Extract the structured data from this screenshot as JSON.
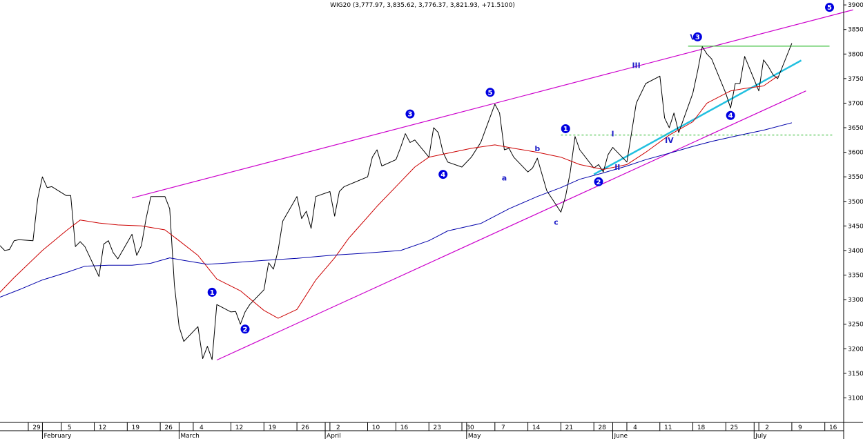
{
  "chart_data": {
    "type": "line",
    "title": "WIG20 (3,777.97, 3,835.62, 3,776.37, 3,821.93, +71.5100)",
    "ylim": [
      3050,
      3910
    ],
    "y_ticks": [
      3100,
      3150,
      3200,
      3250,
      3300,
      3350,
      3400,
      3450,
      3500,
      3550,
      3600,
      3650,
      3700,
      3750,
      3800,
      3850,
      3900
    ],
    "x_range": [
      "2012-01-23",
      "2012-07-20"
    ],
    "day_ticks": [
      {
        "date": "2012-01-29",
        "label": "29"
      },
      {
        "date": "2012-02-05",
        "label": "5"
      },
      {
        "date": "2012-02-12",
        "label": "12"
      },
      {
        "date": "2012-02-19",
        "label": "19"
      },
      {
        "date": "2012-02-26",
        "label": "26"
      },
      {
        "date": "2012-03-04",
        "label": "4"
      },
      {
        "date": "2012-03-12",
        "label": "12"
      },
      {
        "date": "2012-03-19",
        "label": "19"
      },
      {
        "date": "2012-03-26",
        "label": "26"
      },
      {
        "date": "2012-04-02",
        "label": "2"
      },
      {
        "date": "2012-04-10",
        "label": "10"
      },
      {
        "date": "2012-04-16",
        "label": "16"
      },
      {
        "date": "2012-04-23",
        "label": "23"
      },
      {
        "date": "2012-04-30",
        "label": "30"
      },
      {
        "date": "2012-05-07",
        "label": "7"
      },
      {
        "date": "2012-05-14",
        "label": "14"
      },
      {
        "date": "2012-05-21",
        "label": "21"
      },
      {
        "date": "2012-05-28",
        "label": "28"
      },
      {
        "date": "2012-06-04",
        "label": "4"
      },
      {
        "date": "2012-06-11",
        "label": "11"
      },
      {
        "date": "2012-06-18",
        "label": "18"
      },
      {
        "date": "2012-06-25",
        "label": "25"
      },
      {
        "date": "2012-07-02",
        "label": "2"
      },
      {
        "date": "2012-07-09",
        "label": "9"
      },
      {
        "date": "2012-07-16",
        "label": "16"
      }
    ],
    "month_ticks": [
      {
        "date": "2012-02-01",
        "label": "February"
      },
      {
        "date": "2012-03-01",
        "label": "March"
      },
      {
        "date": "2012-04-01",
        "label": "April"
      },
      {
        "date": "2012-05-01",
        "label": "May"
      },
      {
        "date": "2012-06-01",
        "label": "June"
      },
      {
        "date": "2012-07-01",
        "label": "July"
      }
    ],
    "series": [
      {
        "color": "#000000",
        "points": [
          [
            "2012-01-23",
            3410
          ],
          [
            "2012-01-24",
            3400
          ],
          [
            "2012-01-25",
            3402
          ],
          [
            "2012-01-26",
            3420
          ],
          [
            "2012-01-27",
            3422
          ],
          [
            "2012-01-30",
            3420
          ],
          [
            "2012-01-31",
            3505
          ],
          [
            "2012-02-01",
            3550
          ],
          [
            "2012-02-02",
            3528
          ],
          [
            "2012-02-03",
            3530
          ],
          [
            "2012-02-06",
            3512
          ],
          [
            "2012-02-07",
            3512
          ],
          [
            "2012-02-08",
            3408
          ],
          [
            "2012-02-09",
            3418
          ],
          [
            "2012-02-10",
            3408
          ],
          [
            "2012-02-13",
            3347
          ],
          [
            "2012-02-14",
            3413
          ],
          [
            "2012-02-15",
            3420
          ],
          [
            "2012-02-16",
            3396
          ],
          [
            "2012-02-17",
            3383
          ],
          [
            "2012-02-20",
            3433
          ],
          [
            "2012-02-21",
            3390
          ],
          [
            "2012-02-22",
            3410
          ],
          [
            "2012-02-23",
            3465
          ],
          [
            "2012-02-24",
            3510
          ],
          [
            "2012-02-27",
            3510
          ],
          [
            "2012-02-28",
            3485
          ],
          [
            "2012-02-29",
            3330
          ],
          [
            "2012-03-01",
            3245
          ],
          [
            "2012-03-02",
            3215
          ],
          [
            "2012-03-05",
            3245
          ],
          [
            "2012-03-06",
            3180
          ],
          [
            "2012-03-07",
            3205
          ],
          [
            "2012-03-08",
            3178
          ],
          [
            "2012-03-09",
            3290
          ],
          [
            "2012-03-12",
            3275
          ],
          [
            "2012-03-13",
            3276
          ],
          [
            "2012-03-14",
            3250
          ],
          [
            "2012-03-15",
            3275
          ],
          [
            "2012-03-16",
            3290
          ],
          [
            "2012-03-19",
            3320
          ],
          [
            "2012-03-20",
            3375
          ],
          [
            "2012-03-21",
            3362
          ],
          [
            "2012-03-22",
            3400
          ],
          [
            "2012-03-23",
            3460
          ],
          [
            "2012-03-26",
            3510
          ],
          [
            "2012-03-27",
            3465
          ],
          [
            "2012-03-28",
            3480
          ],
          [
            "2012-03-29",
            3445
          ],
          [
            "2012-03-30",
            3510
          ],
          [
            "2012-04-02",
            3520
          ],
          [
            "2012-04-03",
            3470
          ],
          [
            "2012-04-04",
            3520
          ],
          [
            "2012-04-05",
            3530
          ],
          [
            "2012-04-10",
            3550
          ],
          [
            "2012-04-11",
            3590
          ],
          [
            "2012-04-12",
            3605
          ],
          [
            "2012-04-13",
            3572
          ],
          [
            "2012-04-16",
            3585
          ],
          [
            "2012-04-17",
            3610
          ],
          [
            "2012-04-18",
            3638
          ],
          [
            "2012-04-19",
            3620
          ],
          [
            "2012-04-20",
            3625
          ],
          [
            "2012-04-23",
            3590
          ],
          [
            "2012-04-24",
            3650
          ],
          [
            "2012-04-25",
            3640
          ],
          [
            "2012-04-26",
            3600
          ],
          [
            "2012-04-27",
            3580
          ],
          [
            "2012-04-30",
            3570
          ],
          [
            "2012-05-02",
            3590
          ],
          [
            "2012-05-04",
            3620
          ],
          [
            "2012-05-07",
            3698
          ],
          [
            "2012-05-08",
            3680
          ],
          [
            "2012-05-09",
            3605
          ],
          [
            "2012-05-10",
            3608
          ],
          [
            "2012-05-11",
            3590
          ],
          [
            "2012-05-14",
            3560
          ],
          [
            "2012-05-15",
            3568
          ],
          [
            "2012-05-16",
            3588
          ],
          [
            "2012-05-17",
            3555
          ],
          [
            "2012-05-18",
            3522
          ],
          [
            "2012-05-21",
            3478
          ],
          [
            "2012-05-22",
            3510
          ],
          [
            "2012-05-23",
            3560
          ],
          [
            "2012-05-24",
            3632
          ],
          [
            "2012-05-25",
            3605
          ],
          [
            "2012-05-28",
            3568
          ],
          [
            "2012-05-29",
            3575
          ],
          [
            "2012-05-30",
            3560
          ],
          [
            "2012-05-31",
            3595
          ],
          [
            "2012-06-01",
            3610
          ],
          [
            "2012-06-04",
            3580
          ],
          [
            "2012-06-05",
            3640
          ],
          [
            "2012-06-06",
            3700
          ],
          [
            "2012-06-08",
            3740
          ],
          [
            "2012-06-11",
            3755
          ],
          [
            "2012-06-12",
            3670
          ],
          [
            "2012-06-13",
            3650
          ],
          [
            "2012-06-14",
            3680
          ],
          [
            "2012-06-15",
            3640
          ],
          [
            "2012-06-18",
            3720
          ],
          [
            "2012-06-19",
            3765
          ],
          [
            "2012-06-20",
            3815
          ],
          [
            "2012-06-21",
            3800
          ],
          [
            "2012-06-22",
            3790
          ],
          [
            "2012-06-25",
            3720
          ],
          [
            "2012-06-26",
            3690
          ],
          [
            "2012-06-27",
            3740
          ],
          [
            "2012-06-28",
            3740
          ],
          [
            "2012-06-29",
            3795
          ],
          [
            "2012-07-02",
            3725
          ],
          [
            "2012-07-03",
            3788
          ],
          [
            "2012-07-04",
            3775
          ],
          [
            "2012-07-05",
            3758
          ],
          [
            "2012-07-06",
            3750
          ],
          [
            "2012-07-09",
            3821.93
          ]
        ]
      },
      {
        "color": "#cc0000",
        "points": [
          [
            "2012-01-23",
            3315
          ],
          [
            "2012-01-26",
            3345
          ],
          [
            "2012-02-01",
            3400
          ],
          [
            "2012-02-06",
            3440
          ],
          [
            "2012-02-09",
            3462
          ],
          [
            "2012-02-13",
            3456
          ],
          [
            "2012-02-17",
            3452
          ],
          [
            "2012-02-22",
            3450
          ],
          [
            "2012-02-27",
            3442
          ],
          [
            "2012-03-01",
            3420
          ],
          [
            "2012-03-05",
            3390
          ],
          [
            "2012-03-09",
            3342
          ],
          [
            "2012-03-14",
            3318
          ],
          [
            "2012-03-19",
            3278
          ],
          [
            "2012-03-22",
            3262
          ],
          [
            "2012-03-26",
            3280
          ],
          [
            "2012-03-30",
            3340
          ],
          [
            "2012-04-03",
            3385
          ],
          [
            "2012-04-06",
            3425
          ],
          [
            "2012-04-12",
            3490
          ],
          [
            "2012-04-17",
            3540
          ],
          [
            "2012-04-20",
            3570
          ],
          [
            "2012-04-23",
            3590
          ],
          [
            "2012-04-27",
            3598
          ],
          [
            "2012-05-02",
            3608
          ],
          [
            "2012-05-07",
            3615
          ],
          [
            "2012-05-11",
            3608
          ],
          [
            "2012-05-16",
            3600
          ],
          [
            "2012-05-21",
            3590
          ],
          [
            "2012-05-25",
            3575
          ],
          [
            "2012-05-30",
            3565
          ],
          [
            "2012-06-04",
            3575
          ],
          [
            "2012-06-08",
            3600
          ],
          [
            "2012-06-13",
            3635
          ],
          [
            "2012-06-18",
            3662
          ],
          [
            "2012-06-21",
            3700
          ],
          [
            "2012-06-26",
            3725
          ],
          [
            "2012-06-29",
            3730
          ],
          [
            "2012-07-03",
            3735
          ],
          [
            "2012-07-06",
            3755
          ]
        ]
      },
      {
        "color": "#0000aa",
        "points": [
          [
            "2012-01-23",
            3305
          ],
          [
            "2012-01-27",
            3320
          ],
          [
            "2012-02-01",
            3340
          ],
          [
            "2012-02-06",
            3355
          ],
          [
            "2012-02-10",
            3368
          ],
          [
            "2012-02-15",
            3370
          ],
          [
            "2012-02-20",
            3370
          ],
          [
            "2012-02-24",
            3374
          ],
          [
            "2012-02-28",
            3385
          ],
          [
            "2012-03-02",
            3380
          ],
          [
            "2012-03-07",
            3372
          ],
          [
            "2012-03-12",
            3375
          ],
          [
            "2012-03-19",
            3380
          ],
          [
            "2012-03-26",
            3384
          ],
          [
            "2012-04-02",
            3390
          ],
          [
            "2012-04-10",
            3395
          ],
          [
            "2012-04-17",
            3400
          ],
          [
            "2012-04-23",
            3420
          ],
          [
            "2012-04-27",
            3440
          ],
          [
            "2012-05-04",
            3455
          ],
          [
            "2012-05-10",
            3485
          ],
          [
            "2012-05-16",
            3510
          ],
          [
            "2012-05-21",
            3528
          ],
          [
            "2012-05-25",
            3545
          ],
          [
            "2012-05-30",
            3558
          ],
          [
            "2012-06-04",
            3572
          ],
          [
            "2012-06-08",
            3585
          ],
          [
            "2012-06-13",
            3598
          ],
          [
            "2012-06-18",
            3612
          ],
          [
            "2012-06-22",
            3622
          ],
          [
            "2012-06-28",
            3635
          ],
          [
            "2012-07-03",
            3645
          ],
          [
            "2012-07-09",
            3660
          ]
        ]
      }
    ],
    "trendlines": [
      {
        "color": "#cc00cc",
        "x1": "2012-02-20",
        "y1": 3507,
        "x2": "2012-07-22",
        "y2": 3890
      },
      {
        "color": "#cc00cc",
        "x1": "2012-03-09",
        "y1": 3177,
        "x2": "2012-07-12",
        "y2": 3725
      },
      {
        "color": "#22c0e0",
        "x1": "2012-05-28",
        "y1": 3555,
        "x2": "2012-07-11",
        "y2": 3787
      },
      {
        "color": "#40c040",
        "x1": "2012-06-17",
        "y1": 3816,
        "x2": "2012-07-17",
        "y2": 3816
      },
      {
        "color": "#40c040",
        "x1": "2012-05-21",
        "y1": 3635,
        "x2": "2012-07-18",
        "y2": 3635,
        "dashed": true
      }
    ],
    "wave_labels": [
      {
        "text": "1",
        "circled": true,
        "x": "2012-03-08",
        "y": 3315
      },
      {
        "text": "2",
        "circled": true,
        "x": "2012-03-15",
        "y": 3240
      },
      {
        "text": "3",
        "circled": true,
        "x": "2012-04-19",
        "y": 3678
      },
      {
        "text": "4",
        "circled": true,
        "x": "2012-04-26",
        "y": 3555
      },
      {
        "text": "5",
        "circled": true,
        "x": "2012-05-06",
        "y": 3722
      },
      {
        "text": "a",
        "circled": false,
        "x": "2012-05-09",
        "y": 3548
      },
      {
        "text": "b",
        "circled": false,
        "x": "2012-05-16",
        "y": 3608
      },
      {
        "text": "c",
        "circled": false,
        "x": "2012-05-20",
        "y": 3458
      },
      {
        "text": "1",
        "circled": true,
        "x": "2012-05-22",
        "y": 3648
      },
      {
        "text": "2",
        "circled": true,
        "x": "2012-05-29",
        "y": 3540
      },
      {
        "text": "I",
        "circled": false,
        "x": "2012-06-01",
        "y": 3638
      },
      {
        "text": "II",
        "circled": false,
        "x": "2012-06-02",
        "y": 3570
      },
      {
        "text": "III",
        "circled": false,
        "x": "2012-06-06",
        "y": 3777
      },
      {
        "text": "IV",
        "circled": false,
        "x": "2012-06-13",
        "y": 3625
      },
      {
        "text": "V",
        "circled": false,
        "x": "2012-06-18",
        "y": 3835
      },
      {
        "text": "3",
        "circled": true,
        "x": "2012-06-19",
        "y": 3835
      },
      {
        "text": "4",
        "circled": true,
        "x": "2012-06-26",
        "y": 3675
      },
      {
        "text": "5",
        "circled": true,
        "x": "2012-07-17",
        "y": 3895
      }
    ]
  }
}
